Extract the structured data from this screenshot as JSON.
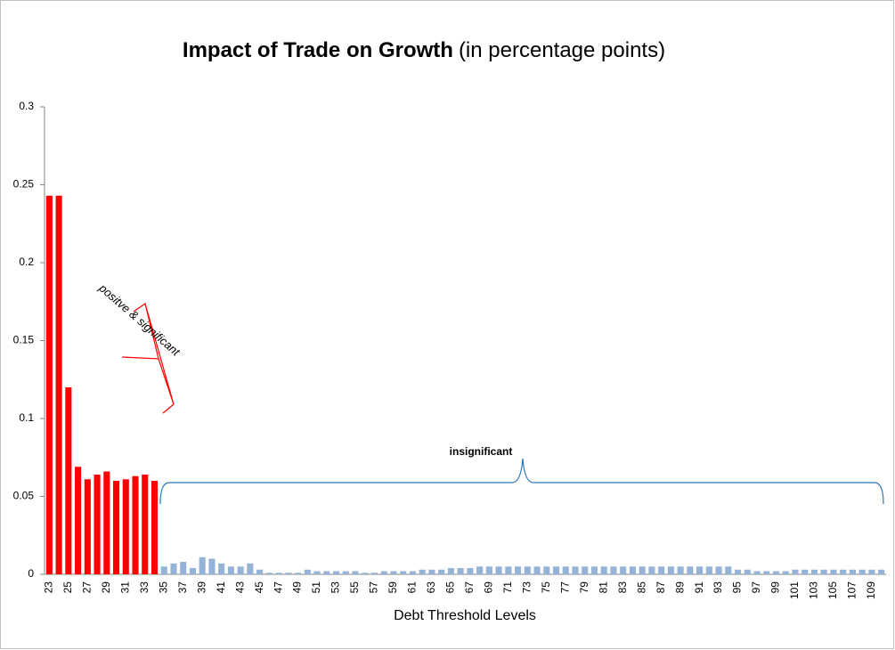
{
  "chart_data": {
    "type": "bar",
    "title": "Impact of Trade on Growth",
    "subtitle": "(in percentage points)",
    "x_label": "Debt Threshold Levels",
    "annotations": [
      {
        "text": "positve & significant",
        "color": "#ff0000"
      },
      {
        "text": "insignificant",
        "color": "#2e75b6"
      }
    ],
    "categories": [
      "23",
      null,
      "25",
      null,
      "27",
      null,
      "29",
      null,
      "31",
      null,
      "33",
      null,
      "35",
      null,
      "37",
      null,
      "39",
      null,
      "41",
      null,
      "43",
      null,
      "45",
      null,
      "47",
      null,
      "49",
      null,
      "51",
      null,
      "53",
      null,
      "55",
      null,
      "57",
      null,
      "59",
      null,
      "61",
      null,
      "63",
      null,
      "65",
      null,
      "67",
      null,
      "69",
      null,
      "71",
      null,
      "73",
      null,
      "75",
      null,
      "77",
      null,
      "79",
      null,
      "81",
      null,
      "83",
      null,
      "85",
      null,
      "87",
      null,
      "89",
      null,
      "91",
      null,
      "93",
      null,
      "95",
      null,
      "97",
      null,
      "99",
      null,
      "101",
      null,
      "103",
      null,
      "105",
      null,
      "107",
      null,
      "109",
      null
    ],
    "values": [
      0.243,
      0.243,
      0.12,
      0.069,
      0.061,
      0.064,
      0.066,
      0.06,
      0.061,
      0.063,
      0.064,
      0.06,
      0.005,
      0.007,
      0.008,
      0.004,
      0.011,
      0.01,
      0.007,
      0.005,
      0.005,
      0.007,
      0.003,
      0.001,
      0.001,
      0.001,
      0.001,
      0.003,
      0.002,
      0.002,
      0.002,
      0.002,
      0.002,
      0.001,
      0.001,
      0.002,
      0.002,
      0.002,
      0.002,
      0.003,
      0.003,
      0.003,
      0.004,
      0.004,
      0.004,
      0.005,
      0.005,
      0.005,
      0.005,
      0.005,
      0.005,
      0.005,
      0.005,
      0.005,
      0.005,
      0.005,
      0.005,
      0.005,
      0.005,
      0.005,
      0.005,
      0.005,
      0.005,
      0.005,
      0.005,
      0.005,
      0.005,
      0.005,
      0.005,
      0.005,
      0.005,
      0.005,
      0.003,
      0.003,
      0.002,
      0.002,
      0.002,
      0.002,
      0.003,
      0.003,
      0.003,
      0.003,
      0.003,
      0.003,
      0.003,
      0.003,
      0.003,
      0.003
    ],
    "colors": [
      "#ff0000",
      "#ff0000",
      "#ff0000",
      "#ff0000",
      "#ff0000",
      "#ff0000",
      "#ff0000",
      "#ff0000",
      "#ff0000",
      "#ff0000",
      "#ff0000",
      "#ff0000",
      "#95b3d7",
      "#95b3d7",
      "#95b3d7",
      "#95b3d7",
      "#95b3d7",
      "#95b3d7",
      "#95b3d7",
      "#95b3d7",
      "#95b3d7",
      "#95b3d7",
      "#95b3d7",
      "#95b3d7",
      "#95b3d7",
      "#95b3d7",
      "#95b3d7",
      "#95b3d7",
      "#95b3d7",
      "#95b3d7",
      "#95b3d7",
      "#95b3d7",
      "#95b3d7",
      "#95b3d7",
      "#95b3d7",
      "#95b3d7",
      "#95b3d7",
      "#95b3d7",
      "#95b3d7",
      "#95b3d7",
      "#95b3d7",
      "#95b3d7",
      "#95b3d7",
      "#95b3d7",
      "#95b3d7",
      "#95b3d7",
      "#95b3d7",
      "#95b3d7",
      "#95b3d7",
      "#95b3d7",
      "#95b3d7",
      "#95b3d7",
      "#95b3d7",
      "#95b3d7",
      "#95b3d7",
      "#95b3d7",
      "#95b3d7",
      "#95b3d7",
      "#95b3d7",
      "#95b3d7",
      "#95b3d7",
      "#95b3d7",
      "#95b3d7",
      "#95b3d7",
      "#95b3d7",
      "#95b3d7",
      "#95b3d7",
      "#95b3d7",
      "#95b3d7",
      "#95b3d7",
      "#95b3d7",
      "#95b3d7",
      "#95b3d7",
      "#95b3d7",
      "#95b3d7",
      "#95b3d7",
      "#95b3d7",
      "#95b3d7",
      "#95b3d7",
      "#95b3d7",
      "#95b3d7",
      "#95b3d7",
      "#95b3d7",
      "#95b3d7",
      "#95b3d7",
      "#95b3d7",
      "#95b3d7",
      "#95b3d7"
    ],
    "ylim": [
      0,
      0.3
    ],
    "yticks": [
      0,
      0.05,
      0.1,
      0.15,
      0.2,
      0.25,
      0.3
    ],
    "grid": false
  }
}
